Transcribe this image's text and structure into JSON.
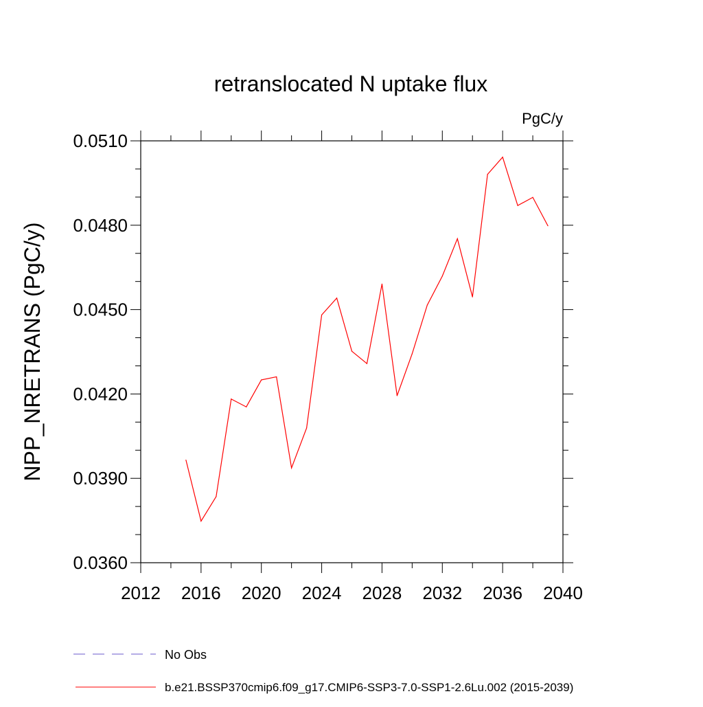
{
  "chart_data": {
    "type": "line",
    "title": "retranslocated N uptake flux",
    "units_label": "PgC/y",
    "ylabel": "NPP_NRETRANS  (PgC/y)",
    "xlabel": "",
    "xlim": [
      2012,
      2040
    ],
    "ylim": [
      0.036,
      0.051
    ],
    "x_ticks": [
      2012,
      2016,
      2020,
      2024,
      2028,
      2032,
      2036,
      2040
    ],
    "x_tick_labels": [
      "2012",
      "2016",
      "2020",
      "2024",
      "2028",
      "2032",
      "2036",
      "2040"
    ],
    "x_minor_ticks": [
      2014,
      2018,
      2022,
      2026,
      2030,
      2034,
      2038
    ],
    "y_ticks": [
      0.036,
      0.039,
      0.042,
      0.045,
      0.048,
      0.051
    ],
    "y_tick_labels": [
      "0.0360",
      "0.0390",
      "0.0420",
      "0.0450",
      "0.0480",
      "0.0510"
    ],
    "y_minor_ticks": [
      0.037,
      0.038,
      0.04,
      0.041,
      0.043,
      0.044,
      0.046,
      0.047,
      0.049,
      0.05
    ],
    "grid": false,
    "legend_position": "bottom",
    "series": [
      {
        "name": "b.e21.BSSP370cmip6.f09_g17.CMIP6-SSP3-7.0-SSP1-2.6Lu.002 (2015-2039)",
        "color": "#ff0000",
        "x": [
          2015,
          2016,
          2017,
          2018,
          2019,
          2020,
          2021,
          2022,
          2023,
          2024,
          2025,
          2026,
          2027,
          2028,
          2029,
          2030,
          2031,
          2032,
          2033,
          2034,
          2035,
          2036,
          2037,
          2038,
          2039
        ],
        "y": [
          0.03965,
          0.03748,
          0.03835,
          0.04182,
          0.04154,
          0.0425,
          0.04261,
          0.03937,
          0.04079,
          0.04481,
          0.04541,
          0.04352,
          0.04308,
          0.04591,
          0.04194,
          0.04343,
          0.04516,
          0.04619,
          0.04752,
          0.04545,
          0.04981,
          0.05042,
          0.0487,
          0.04899,
          0.04798
        ]
      }
    ],
    "legend": [
      {
        "label": "No Obs",
        "style": "dashed",
        "color": "#6a5acd"
      },
      {
        "label": "b.e21.BSSP370cmip6.f09_g17.CMIP6-SSP3-7.0-SSP1-2.6Lu.002 (2015-2039)",
        "style": "solid",
        "color": "#ff0000"
      }
    ]
  }
}
